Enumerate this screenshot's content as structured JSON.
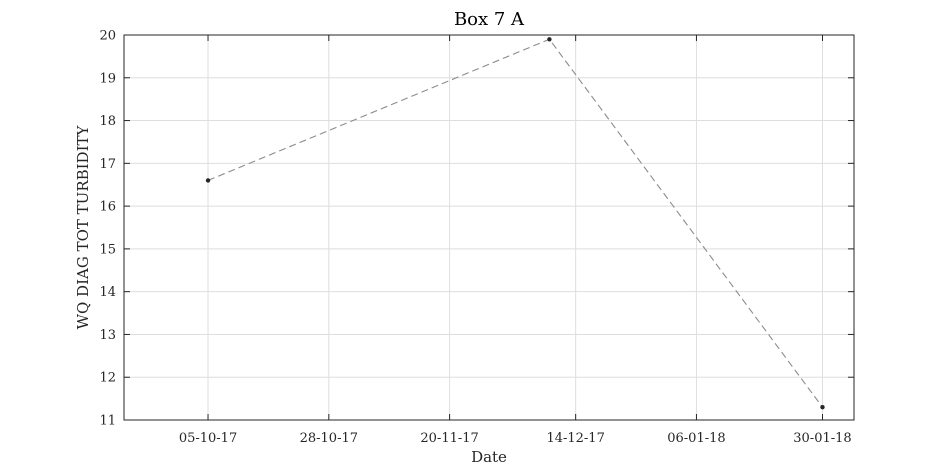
{
  "chart_data": {
    "type": "line",
    "title": "Box 7 A",
    "xlabel": "Date",
    "ylabel": "WQ DIAG TOT TURBIDITY",
    "x_ticks": [
      "05-10-17",
      "28-10-17",
      "20-11-17",
      "14-12-17",
      "06-01-18",
      "30-01-18"
    ],
    "x_tick_dates": [
      "2017-10-05",
      "2017-10-28",
      "2017-11-20",
      "2017-12-14",
      "2018-01-06",
      "2018-01-30"
    ],
    "xlim": [
      "2017-09-19",
      "2018-02-05"
    ],
    "ylim": [
      11,
      20
    ],
    "y_ticks": [
      11,
      12,
      13,
      14,
      15,
      16,
      17,
      18,
      19,
      20
    ],
    "grid": true,
    "series": [
      {
        "x": [
          "2017-10-05",
          "2017-12-09",
          "2018-01-30"
        ],
        "y": [
          16.6,
          19.9,
          11.3
        ],
        "color": "#8c8c8c",
        "line_style": "dashed",
        "marker_color": "#262626"
      }
    ]
  }
}
